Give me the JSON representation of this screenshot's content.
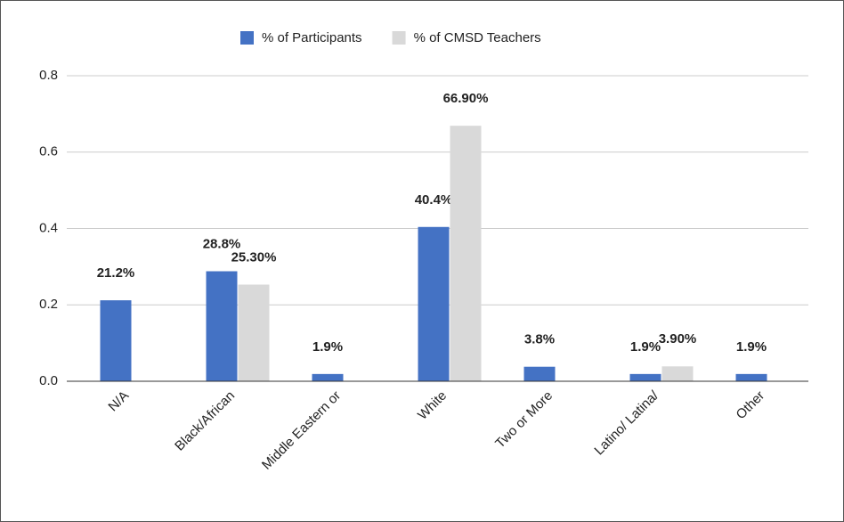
{
  "chart_data": {
    "type": "bar",
    "categories": [
      "N/A",
      "Black/African",
      "Middle Eastern or",
      "White",
      "Two or More",
      "Latino/ Latina/",
      "Other"
    ],
    "series": [
      {
        "name": "% of Participants",
        "color": "#4472c4",
        "values": [
          0.212,
          0.288,
          0.019,
          0.404,
          0.038,
          0.019,
          0.019
        ],
        "value_labels": [
          "21.2%",
          "28.8%",
          "1.9%",
          "40.4%",
          "3.8%",
          "1.9%",
          "1.9%"
        ]
      },
      {
        "name": "% of CMSD Teachers",
        "color": "#d9d9d9",
        "values": [
          null,
          0.253,
          null,
          0.669,
          null,
          0.039,
          null
        ],
        "value_labels": [
          null,
          "25.30%",
          null,
          "66.90%",
          null,
          "3.90%",
          null
        ]
      }
    ],
    "ylim": [
      0,
      0.8
    ],
    "yticks": [
      {
        "value": 0,
        "label": "0.0"
      },
      0.2,
      0.4,
      0.6,
      0.8
    ],
    "grid": true,
    "legend": "top"
  }
}
